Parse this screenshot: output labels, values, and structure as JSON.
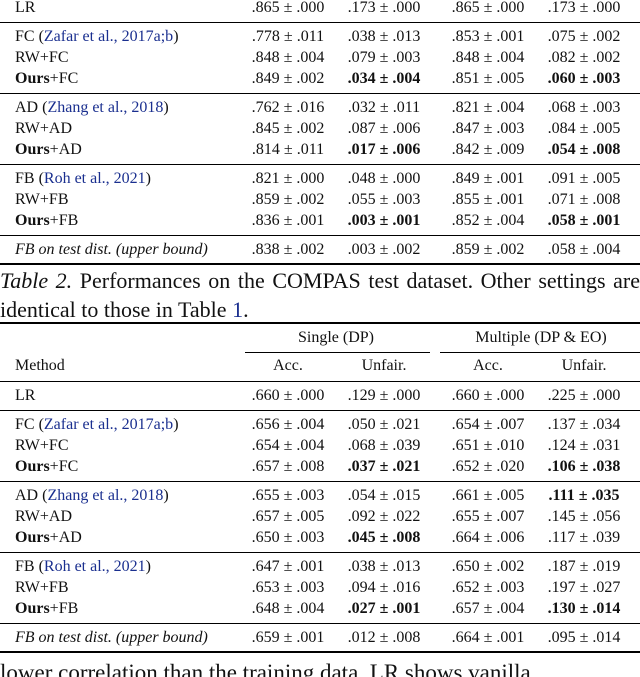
{
  "table1": {
    "groups": [
      [
        {
          "method": [
            {
              "t": "LR"
            }
          ],
          "cells": [
            ".865 ± .000",
            ".173 ± .000",
            ".865 ± .000",
            ".173 ± .000"
          ],
          "bold": []
        }
      ],
      [
        {
          "method": [
            {
              "t": "FC ("
            },
            {
              "t": "Zafar et al., 2017a;b",
              "link": true
            },
            {
              "t": ")"
            }
          ],
          "cells": [
            ".778 ± .011",
            ".038 ± .013",
            ".853 ± .001",
            ".075 ± .002"
          ],
          "bold": []
        },
        {
          "method": [
            {
              "t": "RW+FC"
            }
          ],
          "cells": [
            ".848 ± .004",
            ".079 ± .003",
            ".848 ± .004",
            ".082 ± .002"
          ],
          "bold": []
        },
        {
          "method": [
            {
              "t": "Ours",
              "bold": true
            },
            {
              "t": "+FC"
            }
          ],
          "cells": [
            ".849 ± .002",
            ".034 ± .004",
            ".851 ± .005",
            ".060 ± .003"
          ],
          "bold": [
            1,
            3
          ]
        }
      ],
      [
        {
          "method": [
            {
              "t": "AD ("
            },
            {
              "t": "Zhang et al., 2018",
              "link": true
            },
            {
              "t": ")"
            }
          ],
          "cells": [
            ".762 ± .016",
            ".032 ± .011",
            ".821 ± .004",
            ".068 ± .003"
          ],
          "bold": []
        },
        {
          "method": [
            {
              "t": "RW+AD"
            }
          ],
          "cells": [
            ".845 ± .002",
            ".087 ± .006",
            ".847 ± .003",
            ".084 ± .005"
          ],
          "bold": []
        },
        {
          "method": [
            {
              "t": "Ours",
              "bold": true
            },
            {
              "t": "+AD"
            }
          ],
          "cells": [
            ".814 ± .011",
            ".017 ± .006",
            ".842 ± .009",
            ".054 ± .008"
          ],
          "bold": [
            1,
            3
          ]
        }
      ],
      [
        {
          "method": [
            {
              "t": "FB ("
            },
            {
              "t": "Roh et al., 2021",
              "link": true
            },
            {
              "t": ")"
            }
          ],
          "cells": [
            ".821 ± .000",
            ".048 ± .000",
            ".849 ± .001",
            ".091 ± .005"
          ],
          "bold": []
        },
        {
          "method": [
            {
              "t": "RW+FB"
            }
          ],
          "cells": [
            ".859 ± .002",
            ".055 ± .003",
            ".855 ± .001",
            ".071 ± .008"
          ],
          "bold": []
        },
        {
          "method": [
            {
              "t": "Ours",
              "bold": true
            },
            {
              "t": "+FB"
            }
          ],
          "cells": [
            ".836 ± .001",
            ".003 ± .001",
            ".852 ± .004",
            ".058 ± .001"
          ],
          "bold": [
            1,
            3
          ]
        }
      ],
      [
        {
          "method": [
            {
              "t": "FB on test dist. (upper bound)"
            }
          ],
          "italic": true,
          "cells": [
            ".838 ± .002",
            ".003 ± .002",
            ".859 ± .002",
            ".058 ± .004"
          ],
          "bold": []
        }
      ]
    ]
  },
  "caption": {
    "label": "Table 2.",
    "text": " Performances on the COMPAS test dataset. Other settings are identical to those in Table ",
    "ref": "1",
    "end": "."
  },
  "table2": {
    "group_headers": [
      "Single (DP)",
      "Multiple (DP & EO)"
    ],
    "columns": [
      "Method",
      "Acc.",
      "Unfair.",
      "Acc.",
      "Unfair."
    ],
    "groups": [
      [
        {
          "method": [
            {
              "t": "LR"
            }
          ],
          "cells": [
            ".660 ± .000",
            ".129 ± .000",
            ".660 ± .000",
            ".225 ± .000"
          ],
          "bold": []
        }
      ],
      [
        {
          "method": [
            {
              "t": "FC ("
            },
            {
              "t": "Zafar et al., 2017a;b",
              "link": true
            },
            {
              "t": ")"
            }
          ],
          "cells": [
            ".656 ± .004",
            ".050 ± .021",
            ".654 ± .007",
            ".137 ± .034"
          ],
          "bold": []
        },
        {
          "method": [
            {
              "t": "RW+FC"
            }
          ],
          "cells": [
            ".654 ± .004",
            ".068 ± .039",
            ".651 ± .010",
            ".124 ± .031"
          ],
          "bold": []
        },
        {
          "method": [
            {
              "t": "Ours",
              "bold": true
            },
            {
              "t": "+FC"
            }
          ],
          "cells": [
            ".657 ± .008",
            ".037 ± .021",
            ".652 ± .020",
            ".106 ± .038"
          ],
          "bold": [
            1,
            3
          ]
        }
      ],
      [
        {
          "method": [
            {
              "t": "AD ("
            },
            {
              "t": "Zhang et al., 2018",
              "link": true
            },
            {
              "t": ")"
            }
          ],
          "cells": [
            ".655 ± .003",
            ".054 ± .015",
            ".661 ± .005",
            ".111 ± .035"
          ],
          "bold": [
            3
          ]
        },
        {
          "method": [
            {
              "t": "RW+AD"
            }
          ],
          "cells": [
            ".657 ± .005",
            ".092 ± .022",
            ".655 ± .007",
            ".145 ± .056"
          ],
          "bold": []
        },
        {
          "method": [
            {
              "t": "Ours",
              "bold": true
            },
            {
              "t": "+AD"
            }
          ],
          "cells": [
            ".650 ± .003",
            ".045 ± .008",
            ".664 ± .006",
            ".117 ± .039"
          ],
          "bold": [
            1
          ]
        }
      ],
      [
        {
          "method": [
            {
              "t": "FB ("
            },
            {
              "t": "Roh et al., 2021",
              "link": true
            },
            {
              "t": ")"
            }
          ],
          "cells": [
            ".647 ± .001",
            ".038 ± .013",
            ".650 ± .002",
            ".187 ± .019"
          ],
          "bold": []
        },
        {
          "method": [
            {
              "t": "RW+FB"
            }
          ],
          "cells": [
            ".653 ± .003",
            ".094 ± .016",
            ".652 ± .003",
            ".197 ± .027"
          ],
          "bold": []
        },
        {
          "method": [
            {
              "t": "Ours",
              "bold": true
            },
            {
              "t": "+FB"
            }
          ],
          "cells": [
            ".648 ± .004",
            ".027 ± .001",
            ".657 ± .004",
            ".130 ± .014"
          ],
          "bold": [
            1,
            3
          ]
        }
      ],
      [
        {
          "method": [
            {
              "t": "FB on test dist. (upper bound)"
            }
          ],
          "italic": true,
          "cells": [
            ".659 ± .001",
            ".012 ± .008",
            ".664 ± .001",
            ".095 ± .014"
          ],
          "bold": []
        }
      ]
    ]
  },
  "footer_text": "lower correlation than the training data. LR shows vanilla"
}
